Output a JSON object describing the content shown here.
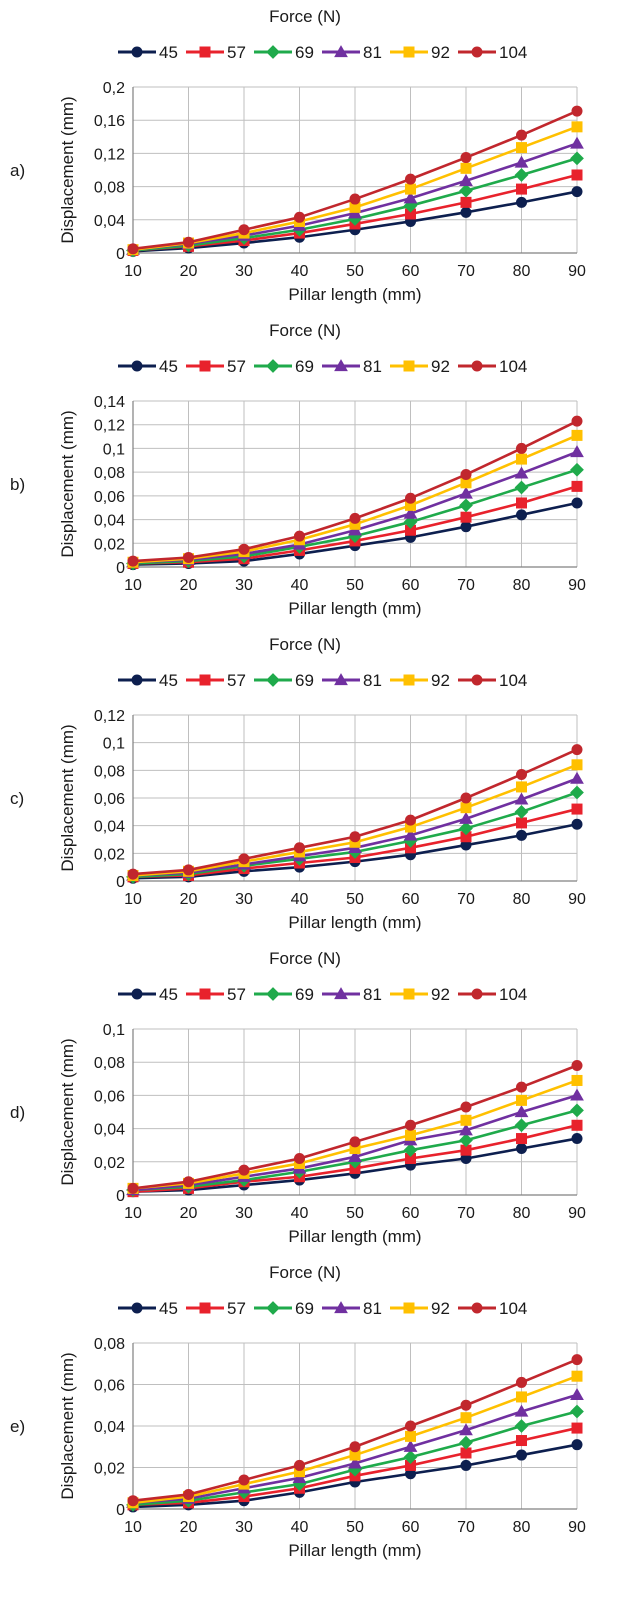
{
  "colors": {
    "45": "#0d1f4f",
    "57": "#e8222c",
    "69": "#1faa4b",
    "81": "#7030a0",
    "92": "#ffc000",
    "104": "#c1272d"
  },
  "markers": {
    "45": "circle",
    "57": "square",
    "69": "diamond",
    "81": "triangle",
    "92": "square",
    "104": "circle"
  },
  "chart_data": [
    {
      "type": "line",
      "panel_label": "a)",
      "legend_title": "Force (N)",
      "legend_position": "top",
      "xlabel": "Pillar length (mm)",
      "ylabel": "Displacement (mm)",
      "grid": true,
      "x": [
        10,
        20,
        30,
        40,
        50,
        60,
        70,
        80,
        90
      ],
      "ylim": [
        0,
        0.2
      ],
      "yticks": [
        "0",
        "0,04",
        "0,08",
        "0,12",
        "0,16",
        "0,2"
      ],
      "xticks": [
        "10",
        "20",
        "30",
        "40",
        "50",
        "60",
        "70",
        "80",
        "90"
      ],
      "series": [
        {
          "name": "45",
          "values": [
            0.002,
            0.006,
            0.012,
            0.019,
            0.028,
            0.038,
            0.049,
            0.061,
            0.074
          ]
        },
        {
          "name": "57",
          "values": [
            0.003,
            0.008,
            0.015,
            0.024,
            0.035,
            0.047,
            0.061,
            0.077,
            0.094
          ]
        },
        {
          "name": "69",
          "values": [
            0.003,
            0.009,
            0.018,
            0.028,
            0.041,
            0.057,
            0.075,
            0.094,
            0.114
          ]
        },
        {
          "name": "81",
          "values": [
            0.004,
            0.011,
            0.021,
            0.033,
            0.048,
            0.066,
            0.087,
            0.109,
            0.132
          ]
        },
        {
          "name": "92",
          "values": [
            0.004,
            0.012,
            0.024,
            0.038,
            0.055,
            0.077,
            0.102,
            0.127,
            0.152
          ]
        },
        {
          "name": "104",
          "values": [
            0.005,
            0.013,
            0.028,
            0.043,
            0.065,
            0.089,
            0.115,
            0.142,
            0.171
          ]
        }
      ]
    },
    {
      "type": "line",
      "panel_label": "b)",
      "legend_title": "Force (N)",
      "legend_position": "top",
      "xlabel": "Pillar length (mm)",
      "ylabel": "Displacement (mm)",
      "grid": true,
      "x": [
        10,
        20,
        30,
        40,
        50,
        60,
        70,
        80,
        90
      ],
      "ylim": [
        0,
        0.14
      ],
      "yticks": [
        "0",
        "0,02",
        "0,04",
        "0,06",
        "0,08",
        "0,1",
        "0,12",
        "0,14"
      ],
      "xticks": [
        "10",
        "20",
        "30",
        "40",
        "50",
        "60",
        "70",
        "80",
        "90"
      ],
      "series": [
        {
          "name": "45",
          "values": [
            0.002,
            0.003,
            0.005,
            0.011,
            0.018,
            0.025,
            0.034,
            0.044,
            0.054
          ]
        },
        {
          "name": "57",
          "values": [
            0.003,
            0.004,
            0.007,
            0.014,
            0.022,
            0.031,
            0.042,
            0.054,
            0.068
          ]
        },
        {
          "name": "69",
          "values": [
            0.003,
            0.005,
            0.009,
            0.017,
            0.026,
            0.038,
            0.052,
            0.067,
            0.082
          ]
        },
        {
          "name": "81",
          "values": [
            0.004,
            0.006,
            0.011,
            0.019,
            0.031,
            0.045,
            0.062,
            0.079,
            0.097
          ]
        },
        {
          "name": "92",
          "values": [
            0.004,
            0.007,
            0.013,
            0.023,
            0.036,
            0.052,
            0.071,
            0.091,
            0.111
          ]
        },
        {
          "name": "104",
          "values": [
            0.005,
            0.008,
            0.015,
            0.026,
            0.041,
            0.058,
            0.078,
            0.1,
            0.123
          ]
        }
      ]
    },
    {
      "type": "line",
      "panel_label": "c)",
      "legend_title": "Force (N)",
      "legend_position": "top",
      "xlabel": "Pillar length (mm)",
      "ylabel": "Displacement (mm)",
      "grid": true,
      "x": [
        10,
        20,
        30,
        40,
        50,
        60,
        70,
        80,
        90
      ],
      "ylim": [
        0,
        0.12
      ],
      "yticks": [
        "0",
        "0,02",
        "0,04",
        "0,06",
        "0,08",
        "0,1",
        "0,12"
      ],
      "xticks": [
        "10",
        "20",
        "30",
        "40",
        "50",
        "60",
        "70",
        "80",
        "90"
      ],
      "series": [
        {
          "name": "45",
          "values": [
            0.002,
            0.003,
            0.007,
            0.01,
            0.014,
            0.019,
            0.026,
            0.033,
            0.041
          ]
        },
        {
          "name": "57",
          "values": [
            0.003,
            0.004,
            0.009,
            0.013,
            0.017,
            0.024,
            0.032,
            0.042,
            0.052
          ]
        },
        {
          "name": "69",
          "values": [
            0.003,
            0.005,
            0.011,
            0.016,
            0.021,
            0.029,
            0.038,
            0.05,
            0.064
          ]
        },
        {
          "name": "81",
          "values": [
            0.004,
            0.006,
            0.012,
            0.018,
            0.024,
            0.033,
            0.045,
            0.059,
            0.074
          ]
        },
        {
          "name": "92",
          "values": [
            0.004,
            0.007,
            0.014,
            0.021,
            0.028,
            0.039,
            0.053,
            0.068,
            0.084
          ]
        },
        {
          "name": "104",
          "values": [
            0.005,
            0.008,
            0.016,
            0.024,
            0.032,
            0.044,
            0.06,
            0.077,
            0.095
          ]
        }
      ]
    },
    {
      "type": "line",
      "panel_label": "d)",
      "legend_title": "Force (N)",
      "legend_position": "top",
      "xlabel": "Pillar length (mm)",
      "ylabel": "Displacement (mm)",
      "grid": true,
      "x": [
        10,
        20,
        30,
        40,
        50,
        60,
        70,
        80,
        90
      ],
      "ylim": [
        0,
        0.1
      ],
      "yticks": [
        "0",
        "0,02",
        "0,04",
        "0,06",
        "0,08",
        "0,1"
      ],
      "xticks": [
        "10",
        "20",
        "30",
        "40",
        "50",
        "60",
        "70",
        "80",
        "90"
      ],
      "series": [
        {
          "name": "45",
          "values": [
            0.002,
            0.003,
            0.006,
            0.009,
            0.013,
            0.018,
            0.022,
            0.028,
            0.034
          ]
        },
        {
          "name": "57",
          "values": [
            0.002,
            0.004,
            0.008,
            0.011,
            0.016,
            0.022,
            0.027,
            0.034,
            0.042
          ]
        },
        {
          "name": "69",
          "values": [
            0.003,
            0.005,
            0.009,
            0.014,
            0.02,
            0.027,
            0.033,
            0.042,
            0.051
          ]
        },
        {
          "name": "81",
          "values": [
            0.003,
            0.006,
            0.011,
            0.016,
            0.023,
            0.033,
            0.039,
            0.05,
            0.06
          ]
        },
        {
          "name": "92",
          "values": [
            0.004,
            0.007,
            0.013,
            0.019,
            0.028,
            0.036,
            0.045,
            0.057,
            0.069
          ]
        },
        {
          "name": "104",
          "values": [
            0.004,
            0.008,
            0.015,
            0.022,
            0.032,
            0.042,
            0.053,
            0.065,
            0.078
          ]
        }
      ]
    },
    {
      "type": "line",
      "panel_label": "e)",
      "legend_title": "Force (N)",
      "legend_position": "top",
      "xlabel": "Pillar length (mm)",
      "ylabel": "Displacement (mm)",
      "grid": true,
      "x": [
        10,
        20,
        30,
        40,
        50,
        60,
        70,
        80,
        90
      ],
      "ylim": [
        0,
        0.08
      ],
      "yticks": [
        "0",
        "0,02",
        "0,04",
        "0,06",
        "0,08"
      ],
      "xticks": [
        "10",
        "20",
        "30",
        "40",
        "50",
        "60",
        "70",
        "80",
        "90"
      ],
      "series": [
        {
          "name": "45",
          "values": [
            0.001,
            0.002,
            0.004,
            0.008,
            0.013,
            0.017,
            0.021,
            0.026,
            0.031
          ]
        },
        {
          "name": "57",
          "values": [
            0.002,
            0.003,
            0.006,
            0.01,
            0.016,
            0.021,
            0.027,
            0.033,
            0.039
          ]
        },
        {
          "name": "69",
          "values": [
            0.002,
            0.004,
            0.008,
            0.012,
            0.019,
            0.025,
            0.032,
            0.04,
            0.047
          ]
        },
        {
          "name": "81",
          "values": [
            0.003,
            0.005,
            0.01,
            0.015,
            0.022,
            0.03,
            0.038,
            0.047,
            0.055
          ]
        },
        {
          "name": "92",
          "values": [
            0.003,
            0.006,
            0.012,
            0.018,
            0.026,
            0.035,
            0.044,
            0.054,
            0.064
          ]
        },
        {
          "name": "104",
          "values": [
            0.004,
            0.007,
            0.014,
            0.021,
            0.03,
            0.04,
            0.05,
            0.061,
            0.072
          ]
        }
      ]
    }
  ]
}
